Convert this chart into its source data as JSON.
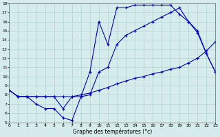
{
  "xlabel": "Graphe des températures (°c)",
  "background_color": "#d6ecec",
  "line_color": "#0000bb",
  "grid_color": "#b0d4d4",
  "xlim": [
    0,
    23
  ],
  "ylim": [
    5,
    18
  ],
  "xticks": [
    0,
    1,
    2,
    3,
    4,
    5,
    6,
    7,
    8,
    9,
    10,
    11,
    12,
    13,
    14,
    15,
    16,
    17,
    18,
    19,
    20,
    21,
    22,
    23
  ],
  "yticks": [
    5,
    6,
    7,
    8,
    9,
    10,
    11,
    12,
    13,
    14,
    15,
    16,
    17,
    18
  ],
  "line1_x": [
    0,
    1,
    2,
    3,
    4,
    5,
    6,
    7,
    8,
    9,
    10,
    11,
    12,
    13,
    14,
    15,
    16,
    17,
    18,
    19,
    20,
    21,
    22,
    23
  ],
  "line1_y": [
    8.5,
    7.8,
    7.8,
    7.0,
    6.5,
    6.5,
    5.5,
    5.2,
    7.8,
    10.5,
    16.0,
    13.5,
    17.5,
    17.5,
    17.8,
    17.8,
    17.8,
    17.8,
    17.8,
    16.8,
    16.0,
    14.8,
    12.5,
    10.5
  ],
  "line2_x": [
    0,
    1,
    2,
    3,
    4,
    5,
    6,
    7,
    8,
    9,
    10,
    11,
    12,
    13,
    14,
    15,
    16,
    17,
    18,
    19,
    20,
    21,
    22,
    23
  ],
  "line2_y": [
    8.5,
    7.8,
    7.8,
    7.8,
    7.8,
    7.8,
    7.8,
    7.8,
    8.0,
    8.2,
    8.5,
    8.8,
    9.2,
    9.5,
    9.8,
    10.0,
    10.3,
    10.5,
    10.8,
    11.0,
    11.5,
    12.0,
    12.8,
    13.8
  ],
  "line3_x": [
    0,
    1,
    2,
    3,
    4,
    5,
    6,
    7,
    8,
    9,
    10,
    11,
    12,
    13,
    14,
    15,
    16,
    17,
    18,
    19,
    20,
    21,
    22,
    23
  ],
  "line3_y": [
    8.5,
    7.8,
    7.8,
    7.8,
    7.8,
    7.8,
    6.5,
    7.8,
    7.8,
    8.0,
    10.5,
    11.0,
    13.5,
    14.5,
    15.0,
    15.5,
    16.0,
    16.5,
    17.0,
    17.5,
    16.0,
    15.0,
    12.5,
    10.5
  ]
}
